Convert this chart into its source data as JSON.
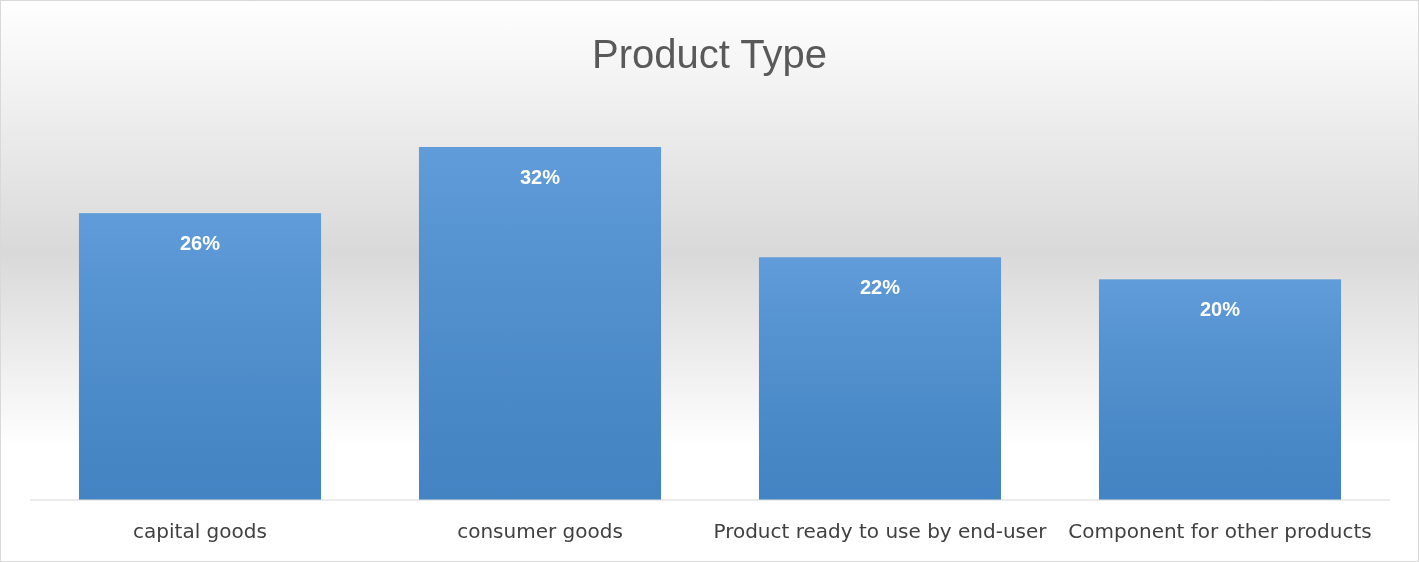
{
  "chart_data": {
    "type": "bar",
    "title": "Product Type",
    "categories": [
      "capital goods",
      "consumer goods",
      "Product ready to use by end-user",
      "Component for other products"
    ],
    "values": [
      26,
      32,
      22,
      20
    ],
    "value_labels": [
      "26%",
      "32%",
      "22%",
      "20%"
    ],
    "color": "#4a8fd4"
  }
}
